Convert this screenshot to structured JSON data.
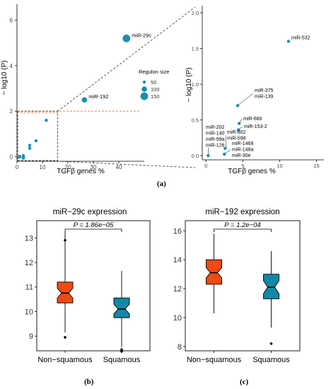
{
  "colors": {
    "point": "#1b8fad",
    "orange": "#ee4a12",
    "teal": "#1387a6",
    "threshold": "#e07a3a",
    "dash": "#555555"
  },
  "captions": {
    "a": "(a)",
    "b": "(b)",
    "c": "(c)"
  },
  "chart_data": [
    {
      "type": "scatter",
      "xlabel": "TGFβ genes %",
      "ylabel": "− log10 (P)",
      "xlim": [
        0,
        50
      ],
      "ylim": [
        -0.2,
        6.7
      ],
      "xticks": [
        0,
        10,
        20,
        30,
        40
      ],
      "yticks": [
        0,
        2,
        4,
        6
      ],
      "threshold_y": 2,
      "legend": {
        "title": "Regulon size",
        "entries": [
          "50",
          "100",
          "150"
        ],
        "position": "right"
      },
      "points": [
        {
          "x": 43,
          "y": 5.2,
          "size": 150,
          "label": "miR-29c"
        },
        {
          "x": 26.5,
          "y": 2.5,
          "size": 100,
          "label": "miR-192"
        },
        {
          "x": 11.5,
          "y": 1.6,
          "size": 50,
          "label": ""
        },
        {
          "x": 7.5,
          "y": 0.7,
          "size": 50,
          "label": ""
        },
        {
          "x": 5,
          "y": 0.5,
          "size": 50,
          "label": ""
        },
        {
          "x": 5,
          "y": 0.37,
          "size": 50,
          "label": ""
        },
        {
          "x": 1,
          "y": 0.0,
          "size": 60,
          "label": ""
        },
        {
          "x": 2.5,
          "y": 0.05,
          "size": 50,
          "label": ""
        },
        {
          "x": 2.5,
          "y": -0.05,
          "size": 60,
          "label": ""
        }
      ]
    },
    {
      "type": "scatter",
      "xlabel": "TGFβ genes %",
      "ylabel": "− log10 (P)",
      "xlim": [
        -0.5,
        16
      ],
      "ylim": [
        -0.06,
        2.1
      ],
      "xticks": [
        0,
        5,
        10,
        15
      ],
      "yticks": [
        0.0,
        0.5,
        1.0,
        1.5,
        2.0
      ],
      "points": [
        {
          "x": 11.2,
          "y": 1.6,
          "label": "miR-532"
        },
        {
          "x": 4.3,
          "y": 0.7,
          "label": "miR-375\nmiR-139"
        },
        {
          "x": 4.5,
          "y": 0.45,
          "label": "miR-660"
        },
        {
          "x": 4.4,
          "y": 0.36,
          "label": "miR-153-2"
        },
        {
          "x": 2.6,
          "y": 0.1,
          "label": "miR-802\nmiR-598"
        },
        {
          "x": 2.5,
          "y": 0.02,
          "label": "miR-1468\nmiR-148a\nmiR-30e"
        },
        {
          "x": 0.3,
          "y": 0.0,
          "label": "miR-202\nmiR-140\nmiR-99a\nmiR-126"
        }
      ]
    },
    {
      "type": "boxplot",
      "title": "miR−29c expression",
      "categories": [
        "Non−squamous",
        "Squamous"
      ],
      "ylim": [
        8.4,
        13.7
      ],
      "yticks": [
        9,
        10,
        11,
        12,
        13
      ],
      "pvalue": "P = 1.86e−05",
      "boxes": [
        {
          "q1": 10.35,
          "median": 10.75,
          "q3": 11.2,
          "notch_lo": 10.55,
          "notch_hi": 10.95,
          "whisker_lo": 9.15,
          "whisker_hi": 13.25,
          "outliers": [
            12.9,
            8.95
          ]
        },
        {
          "q1": 9.75,
          "median": 10.1,
          "q3": 10.55,
          "notch_lo": 9.9,
          "notch_hi": 10.3,
          "whisker_lo": 8.55,
          "whisker_hi": 11.65,
          "outliers": [
            8.45,
            8.38
          ]
        }
      ]
    },
    {
      "type": "boxplot",
      "title": "miR−192 expression",
      "categories": [
        "Non−squamous",
        "Squamous"
      ],
      "ylim": [
        7.7,
        16.7
      ],
      "yticks": [
        8,
        10,
        12,
        14,
        16
      ],
      "pvalue": "P = 1.2e−04",
      "boxes": [
        {
          "q1": 12.3,
          "median": 13.1,
          "q3": 14.0,
          "notch_lo": 12.75,
          "notch_hi": 13.45,
          "whisker_lo": 10.3,
          "whisker_hi": 15.8,
          "outliers": []
        },
        {
          "q1": 11.3,
          "median": 12.1,
          "q3": 13.0,
          "notch_lo": 11.65,
          "notch_hi": 12.55,
          "whisker_lo": 9.3,
          "whisker_hi": 14.6,
          "outliers": [
            8.2
          ]
        }
      ]
    }
  ]
}
